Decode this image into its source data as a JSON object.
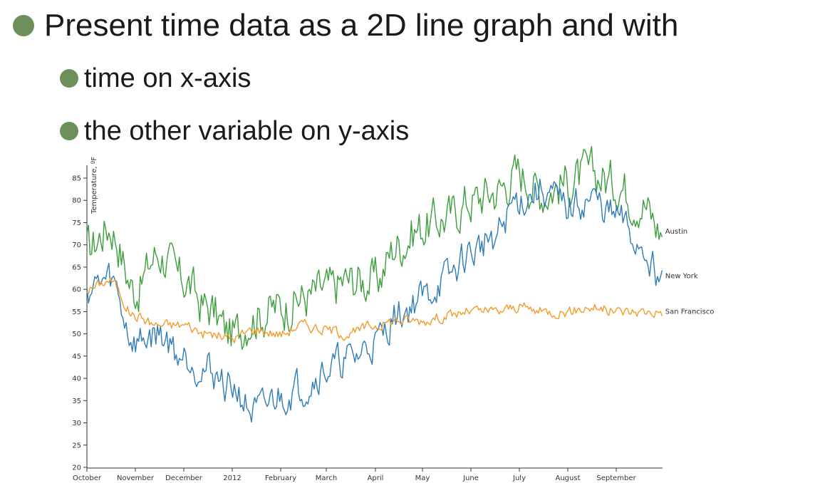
{
  "slide": {
    "bullets": [
      {
        "text": "Present time data as a 2D line graph and with"
      },
      {
        "text": "time on x-axis"
      },
      {
        "text": "the other variable on y-axis"
      }
    ]
  },
  "chart_data": {
    "type": "line",
    "title": "",
    "xlabel": "",
    "ylabel": "Temperature, ºF",
    "ylim": [
      20,
      90
    ],
    "yticks": [
      20,
      25,
      30,
      35,
      40,
      45,
      50,
      55,
      60,
      65,
      70,
      75,
      80,
      85
    ],
    "xticks": [
      "October",
      "November",
      "December",
      "2012",
      "February",
      "March",
      "April",
      "May",
      "June",
      "July",
      "August",
      "September"
    ],
    "colors": {
      "Austin": "#3c9e3c",
      "New York": "#2e7cb8",
      "San Francisco": "#f59a2c"
    },
    "grid": false,
    "legend": "inline labels at line ends",
    "series": [
      {
        "name": "Austin",
        "x": [
          "Oct 1",
          "Oct 15",
          "Nov 1",
          "Nov 15",
          "Dec 1",
          "Dec 15",
          "Jan 1",
          "Jan 15",
          "Feb 1",
          "Feb 15",
          "Mar 1",
          "Mar 15",
          "Apr 1",
          "Apr 15",
          "May 1",
          "May 15",
          "Jun 1",
          "Jun 15",
          "Jul 1",
          "Jul 15",
          "Aug 1",
          "Aug 15",
          "Sep 1",
          "Sep 15",
          "Sep 30"
        ],
        "values": [
          69,
          74,
          60,
          68,
          62,
          56,
          50,
          54,
          56,
          58,
          60,
          62,
          62,
          70,
          74,
          76,
          80,
          82,
          86,
          82,
          84,
          86,
          84,
          80,
          73
        ]
      },
      {
        "name": "New York",
        "x": [
          "Oct 1",
          "Oct 15",
          "Nov 1",
          "Nov 15",
          "Dec 1",
          "Dec 15",
          "Jan 1",
          "Jan 15",
          "Feb 1",
          "Feb 15",
          "Mar 1",
          "Mar 15",
          "Apr 1",
          "Apr 15",
          "May 1",
          "May 15",
          "Jun 1",
          "Jun 15",
          "Jul 1",
          "Jul 15",
          "Aug 1",
          "Aug 15",
          "Sep 1",
          "Sep 15",
          "Sep 30"
        ],
        "values": [
          60,
          62,
          48,
          50,
          45,
          42,
          38,
          32,
          36,
          38,
          42,
          44,
          48,
          54,
          58,
          62,
          68,
          72,
          80,
          82,
          78,
          80,
          76,
          70,
          63
        ]
      },
      {
        "name": "San Francisco",
        "x": [
          "Oct 1",
          "Oct 15",
          "Nov 1",
          "Nov 15",
          "Dec 1",
          "Dec 15",
          "Jan 1",
          "Jan 15",
          "Feb 1",
          "Feb 15",
          "Mar 1",
          "Mar 15",
          "Apr 1",
          "Apr 15",
          "May 1",
          "May 15",
          "Jun 1",
          "Jun 15",
          "Jul 1",
          "Jul 15",
          "Aug 1",
          "Aug 15",
          "Sep 1",
          "Sep 15",
          "Sep 30"
        ],
        "values": [
          60,
          62,
          54,
          52,
          52,
          50,
          49,
          51,
          50,
          52,
          51,
          50,
          52,
          53,
          53,
          54,
          55,
          55,
          56,
          55,
          55,
          56,
          55,
          55,
          55
        ]
      }
    ]
  }
}
